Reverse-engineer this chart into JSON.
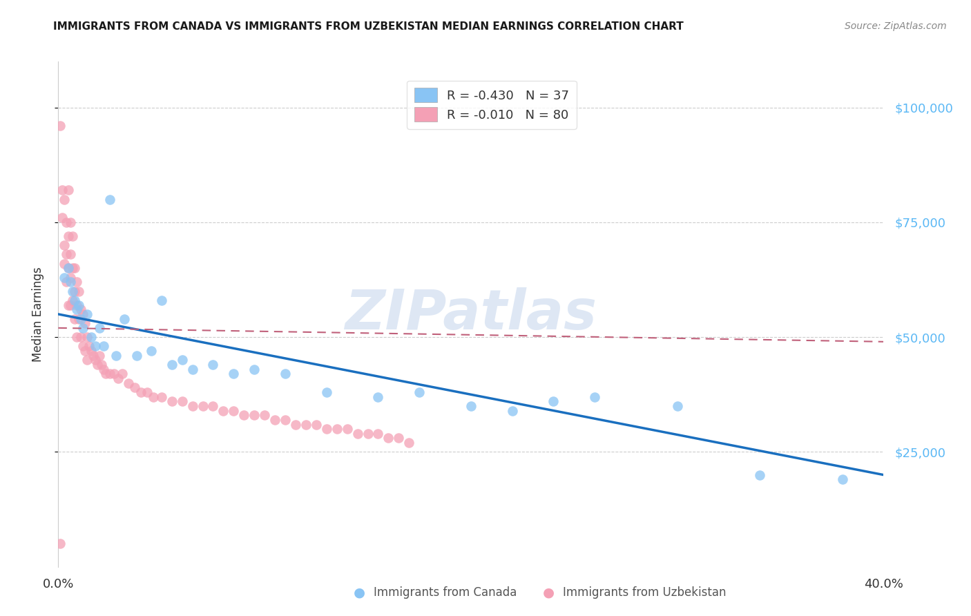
{
  "title": "IMMIGRANTS FROM CANADA VS IMMIGRANTS FROM UZBEKISTAN MEDIAN EARNINGS CORRELATION CHART",
  "source": "Source: ZipAtlas.com",
  "ylabel": "Median Earnings",
  "xmin": 0.0,
  "xmax": 0.4,
  "ymin": 0,
  "ymax": 110000,
  "yticks": [
    25000,
    50000,
    75000,
    100000
  ],
  "ytick_labels": [
    "$25,000",
    "$50,000",
    "$75,000",
    "$100,000"
  ],
  "xticks": [
    0.0,
    0.1,
    0.2,
    0.3,
    0.4
  ],
  "xtick_labels": [
    "0.0%",
    "",
    "",
    "",
    "40.0%"
  ],
  "legend_R1": "R = ",
  "legend_R1_val": "-0.430",
  "legend_N1": "N = ",
  "legend_N1_val": "37",
  "legend_R2": "R = ",
  "legend_R2_val": "-0.010",
  "legend_N2": "N = ",
  "legend_N2_val": "80",
  "color_canada": "#89C4F4",
  "color_uzbekistan": "#F4A0B5",
  "color_trendline_canada": "#1A6FBF",
  "color_trendline_uzbekistan": "#C0607A",
  "color_ytick": "#5BB8F5",
  "watermark": "ZIPatlas",
  "canada_trendline_y0": 55000,
  "canada_trendline_y1": 20000,
  "uzbekistan_trendline_y0": 52000,
  "uzbekistan_trendline_y1": 49000,
  "canada_x": [
    0.003,
    0.005,
    0.006,
    0.007,
    0.008,
    0.009,
    0.01,
    0.011,
    0.012,
    0.014,
    0.016,
    0.018,
    0.02,
    0.022,
    0.025,
    0.028,
    0.032,
    0.038,
    0.045,
    0.05,
    0.055,
    0.06,
    0.065,
    0.075,
    0.085,
    0.095,
    0.11,
    0.13,
    0.155,
    0.175,
    0.2,
    0.22,
    0.24,
    0.26,
    0.3,
    0.34,
    0.38
  ],
  "canada_y": [
    63000,
    65000,
    62000,
    60000,
    58000,
    56000,
    57000,
    54000,
    52000,
    55000,
    50000,
    48000,
    52000,
    48000,
    80000,
    46000,
    54000,
    46000,
    47000,
    58000,
    44000,
    45000,
    43000,
    44000,
    42000,
    43000,
    42000,
    38000,
    37000,
    38000,
    35000,
    34000,
    36000,
    37000,
    35000,
    20000,
    19000
  ],
  "uzbekistan_x": [
    0.001,
    0.002,
    0.002,
    0.003,
    0.003,
    0.003,
    0.004,
    0.004,
    0.004,
    0.005,
    0.005,
    0.005,
    0.005,
    0.006,
    0.006,
    0.006,
    0.006,
    0.007,
    0.007,
    0.007,
    0.008,
    0.008,
    0.008,
    0.009,
    0.009,
    0.009,
    0.01,
    0.01,
    0.011,
    0.011,
    0.012,
    0.012,
    0.013,
    0.013,
    0.014,
    0.014,
    0.015,
    0.016,
    0.017,
    0.018,
    0.019,
    0.02,
    0.021,
    0.022,
    0.023,
    0.025,
    0.027,
    0.029,
    0.031,
    0.034,
    0.037,
    0.04,
    0.043,
    0.046,
    0.05,
    0.055,
    0.06,
    0.065,
    0.07,
    0.075,
    0.08,
    0.085,
    0.09,
    0.095,
    0.1,
    0.105,
    0.11,
    0.115,
    0.12,
    0.125,
    0.13,
    0.135,
    0.14,
    0.145,
    0.15,
    0.155,
    0.16,
    0.165,
    0.17,
    0.001
  ],
  "uzbekistan_y": [
    96000,
    82000,
    76000,
    80000,
    70000,
    66000,
    75000,
    68000,
    62000,
    82000,
    72000,
    65000,
    57000,
    75000,
    68000,
    63000,
    57000,
    72000,
    65000,
    58000,
    65000,
    60000,
    54000,
    62000,
    57000,
    50000,
    60000,
    54000,
    56000,
    50000,
    55000,
    48000,
    53000,
    47000,
    50000,
    45000,
    48000,
    47000,
    46000,
    45000,
    44000,
    46000,
    44000,
    43000,
    42000,
    42000,
    42000,
    41000,
    42000,
    40000,
    39000,
    38000,
    38000,
    37000,
    37000,
    36000,
    36000,
    35000,
    35000,
    35000,
    34000,
    34000,
    33000,
    33000,
    33000,
    32000,
    32000,
    31000,
    31000,
    31000,
    30000,
    30000,
    30000,
    29000,
    29000,
    29000,
    28000,
    28000,
    27000,
    5000
  ]
}
